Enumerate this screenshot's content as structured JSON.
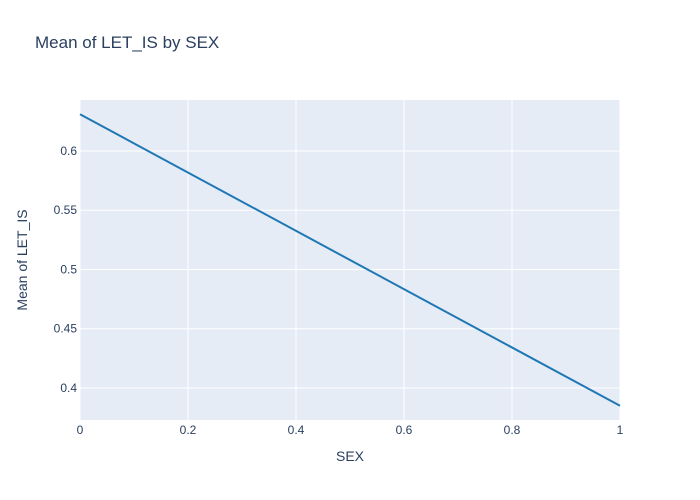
{
  "chart_data": {
    "type": "line",
    "title": "Mean of LET_IS by SEX",
    "xlabel": "SEX",
    "ylabel": "Mean of LET_IS",
    "x": [
      0,
      1
    ],
    "series": [
      {
        "values": [
          0.631,
          0.385
        ]
      }
    ],
    "xlim": [
      0,
      1
    ],
    "ylim": [
      0.373,
      0.643
    ],
    "xticks": [
      0,
      0.2,
      0.4,
      0.6,
      0.8,
      1
    ],
    "xtick_labels": [
      "0",
      "0.2",
      "0.4",
      "0.6",
      "0.8",
      "1"
    ],
    "yticks": [
      0.4,
      0.45,
      0.5,
      0.55,
      0.6
    ],
    "ytick_labels": [
      "0.4",
      "0.45",
      "0.5",
      "0.55",
      "0.6"
    ],
    "grid": true,
    "legend": "none",
    "colors": {
      "plot_background": "#e5ecf6",
      "grid": "#ffffff",
      "line": "#1f77b4",
      "text": "#2a3f5f"
    }
  }
}
